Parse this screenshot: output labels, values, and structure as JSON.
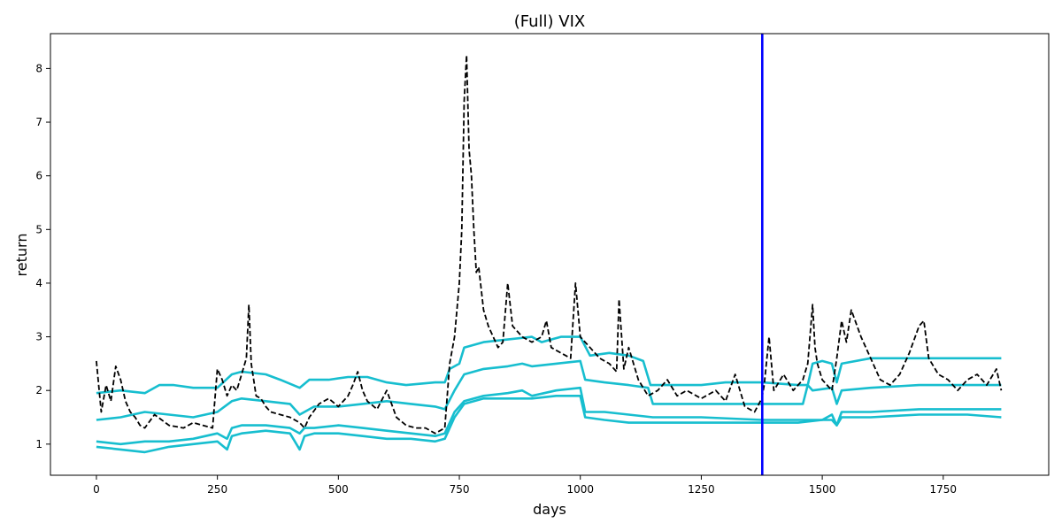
{
  "chart_data": {
    "type": "line",
    "title": "(Full) VIX",
    "xlabel": "days",
    "ylabel": "return",
    "xlim": [
      -95,
      1968
    ],
    "ylim": [
      0.42,
      8.65
    ],
    "xticks": [
      0,
      250,
      500,
      750,
      1000,
      1250,
      1500,
      1750
    ],
    "yticks": [
      1,
      2,
      3,
      4,
      5,
      6,
      7,
      8
    ],
    "grid": false,
    "legend": "none",
    "vertical_line": {
      "x": 1376,
      "color": "#0000ff"
    },
    "colors": {
      "actual": "#000000",
      "quantiles": "#17becf"
    },
    "series": [
      {
        "style": "dashed",
        "color": "#000000",
        "x": [
          0,
          10,
          20,
          30,
          40,
          50,
          60,
          70,
          80,
          90,
          100,
          120,
          150,
          180,
          200,
          220,
          240,
          250,
          260,
          270,
          280,
          290,
          300,
          310,
          315,
          320,
          330,
          340,
          350,
          360,
          380,
          400,
          420,
          430,
          440,
          460,
          480,
          500,
          520,
          530,
          540,
          550,
          560,
          580,
          600,
          620,
          640,
          660,
          680,
          700,
          720,
          730,
          740,
          750,
          755,
          760,
          765,
          770,
          775,
          780,
          785,
          790,
          800,
          810,
          820,
          830,
          840,
          850,
          860,
          880,
          900,
          920,
          930,
          940,
          960,
          980,
          990,
          1000,
          1020,
          1040,
          1060,
          1075,
          1080,
          1090,
          1100,
          1120,
          1140,
          1160,
          1180,
          1200,
          1220,
          1250,
          1280,
          1300,
          1320,
          1340,
          1360,
          1375,
          1380,
          1390,
          1400,
          1420,
          1440,
          1460,
          1470,
          1480,
          1485,
          1490,
          1500,
          1520,
          1530,
          1540,
          1550,
          1560,
          1580,
          1600,
          1620,
          1640,
          1660,
          1680,
          1700,
          1710,
          1720,
          1740,
          1760,
          1780,
          1800,
          1820,
          1840,
          1860,
          1870
        ],
        "values": [
          2.55,
          1.6,
          2.1,
          1.8,
          2.45,
          2.2,
          1.8,
          1.6,
          1.5,
          1.35,
          1.3,
          1.55,
          1.35,
          1.3,
          1.4,
          1.35,
          1.3,
          2.4,
          2.2,
          1.9,
          2.1,
          2.0,
          2.3,
          2.6,
          3.6,
          2.5,
          1.9,
          1.85,
          1.7,
          1.6,
          1.55,
          1.5,
          1.4,
          1.3,
          1.5,
          1.75,
          1.85,
          1.7,
          1.9,
          2.1,
          2.35,
          2.0,
          1.8,
          1.65,
          2.0,
          1.5,
          1.35,
          1.3,
          1.3,
          1.2,
          1.3,
          2.5,
          3.0,
          4.0,
          5.0,
          7.4,
          8.25,
          6.5,
          6.0,
          5.0,
          4.2,
          4.3,
          3.5,
          3.2,
          3.0,
          2.8,
          2.9,
          4.0,
          3.2,
          3.0,
          2.9,
          3.0,
          3.3,
          2.8,
          2.7,
          2.6,
          4.0,
          3.0,
          2.8,
          2.6,
          2.5,
          2.35,
          3.7,
          2.4,
          2.8,
          2.2,
          1.9,
          2.0,
          2.2,
          1.9,
          2.0,
          1.85,
          2.0,
          1.8,
          2.3,
          1.7,
          1.6,
          1.85,
          2.1,
          3.0,
          2.0,
          2.3,
          2.0,
          2.2,
          2.5,
          3.6,
          2.8,
          2.5,
          2.2,
          2.0,
          2.6,
          3.3,
          2.9,
          3.5,
          3.0,
          2.6,
          2.2,
          2.1,
          2.3,
          2.7,
          3.2,
          3.3,
          2.6,
          2.3,
          2.2,
          2.0,
          2.2,
          2.3,
          2.1,
          2.4,
          2.0
        ]
      },
      {
        "style": "solid",
        "color": "#17becf",
        "x": [
          0,
          50,
          100,
          130,
          160,
          200,
          250,
          280,
          300,
          350,
          380,
          420,
          440,
          480,
          520,
          560,
          600,
          640,
          700,
          720,
          730,
          750,
          760,
          800,
          850,
          900,
          920,
          960,
          1000,
          1020,
          1060,
          1100,
          1130,
          1145,
          1160,
          1250,
          1300,
          1376,
          1450,
          1460,
          1470,
          1480,
          1500,
          1520,
          1530,
          1540,
          1600,
          1700,
          1800,
          1870
        ],
        "values": [
          1.95,
          2.0,
          1.95,
          2.1,
          2.1,
          2.05,
          2.05,
          2.3,
          2.35,
          2.3,
          2.2,
          2.05,
          2.2,
          2.2,
          2.25,
          2.25,
          2.15,
          2.1,
          2.15,
          2.15,
          2.4,
          2.5,
          2.8,
          2.9,
          2.95,
          3.0,
          2.9,
          3.0,
          3.0,
          2.65,
          2.7,
          2.65,
          2.55,
          2.1,
          2.1,
          2.1,
          2.15,
          2.15,
          2.1,
          2.1,
          2.1,
          2.5,
          2.55,
          2.5,
          2.15,
          2.5,
          2.6,
          2.6,
          2.6,
          2.6
        ]
      },
      {
        "style": "solid",
        "color": "#17becf",
        "x": [
          0,
          50,
          100,
          150,
          200,
          250,
          280,
          300,
          350,
          400,
          420,
          450,
          500,
          550,
          600,
          650,
          700,
          720,
          740,
          760,
          800,
          850,
          880,
          900,
          950,
          1000,
          1010,
          1050,
          1100,
          1140,
          1150,
          1250,
          1376,
          1460,
          1470,
          1480,
          1520,
          1530,
          1540,
          1600,
          1700,
          1800,
          1870
        ],
        "values": [
          1.45,
          1.5,
          1.6,
          1.55,
          1.5,
          1.6,
          1.8,
          1.85,
          1.8,
          1.75,
          1.55,
          1.7,
          1.7,
          1.75,
          1.8,
          1.75,
          1.7,
          1.65,
          2.0,
          2.3,
          2.4,
          2.45,
          2.5,
          2.45,
          2.5,
          2.55,
          2.2,
          2.15,
          2.1,
          2.05,
          1.75,
          1.75,
          1.75,
          1.75,
          2.1,
          2.0,
          2.05,
          1.75,
          2.0,
          2.05,
          2.1,
          2.1,
          2.1
        ]
      },
      {
        "style": "solid",
        "color": "#17becf",
        "x": [
          0,
          50,
          100,
          150,
          200,
          250,
          270,
          280,
          300,
          350,
          400,
          420,
          430,
          450,
          500,
          550,
          600,
          650,
          700,
          720,
          740,
          760,
          800,
          850,
          880,
          900,
          950,
          1000,
          1010,
          1050,
          1100,
          1150,
          1250,
          1376,
          1450,
          1500,
          1520,
          1530,
          1540,
          1600,
          1700,
          1800,
          1870
        ],
        "values": [
          1.05,
          1.0,
          1.05,
          1.05,
          1.1,
          1.2,
          1.1,
          1.3,
          1.35,
          1.35,
          1.3,
          1.2,
          1.3,
          1.3,
          1.35,
          1.3,
          1.25,
          1.2,
          1.15,
          1.2,
          1.6,
          1.8,
          1.9,
          1.95,
          2.0,
          1.9,
          2.0,
          2.05,
          1.6,
          1.6,
          1.55,
          1.5,
          1.5,
          1.45,
          1.45,
          1.45,
          1.55,
          1.35,
          1.6,
          1.6,
          1.65,
          1.65,
          1.65
        ]
      },
      {
        "style": "solid",
        "color": "#17becf",
        "x": [
          0,
          50,
          100,
          150,
          200,
          250,
          270,
          280,
          300,
          350,
          400,
          420,
          430,
          450,
          500,
          550,
          600,
          650,
          700,
          720,
          740,
          760,
          800,
          850,
          900,
          950,
          1000,
          1010,
          1050,
          1100,
          1150,
          1250,
          1376,
          1450,
          1500,
          1520,
          1530,
          1540,
          1600,
          1700,
          1800,
          1870
        ],
        "values": [
          0.95,
          0.9,
          0.85,
          0.95,
          1.0,
          1.05,
          0.9,
          1.15,
          1.2,
          1.25,
          1.2,
          0.9,
          1.15,
          1.2,
          1.2,
          1.15,
          1.1,
          1.1,
          1.05,
          1.1,
          1.5,
          1.75,
          1.85,
          1.85,
          1.85,
          1.9,
          1.9,
          1.5,
          1.45,
          1.4,
          1.4,
          1.4,
          1.4,
          1.4,
          1.45,
          1.45,
          1.35,
          1.5,
          1.5,
          1.55,
          1.55,
          1.5
        ]
      }
    ]
  }
}
